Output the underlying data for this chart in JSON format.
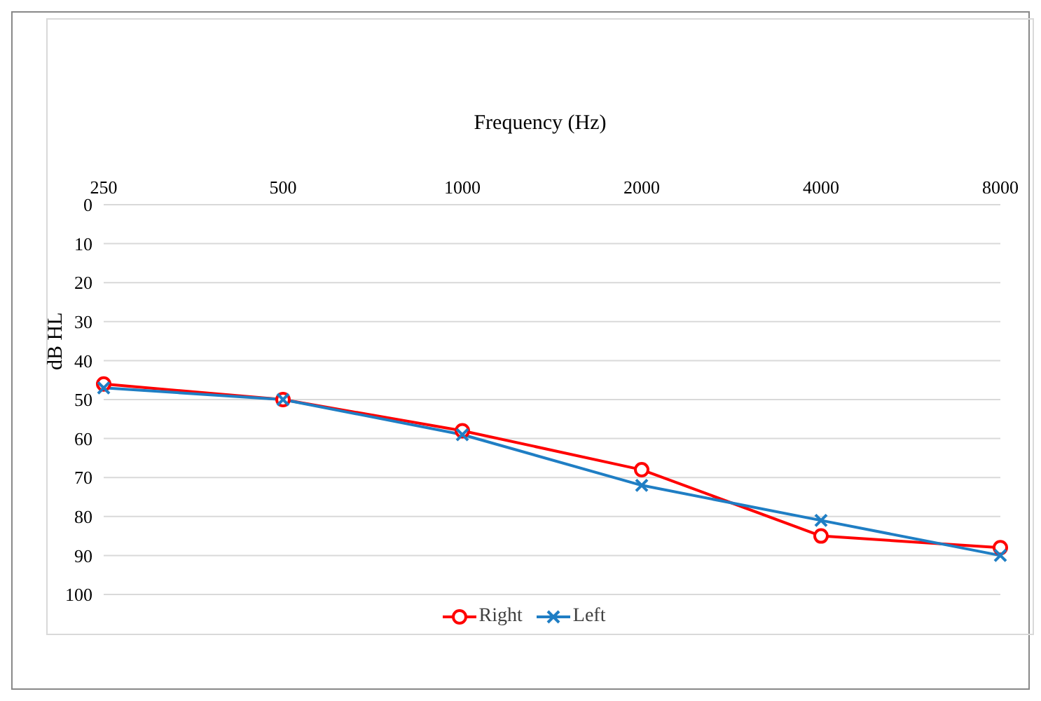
{
  "chart_data": {
    "type": "line",
    "xlabel": "Frequency (Hz)",
    "ylabel": "dB HL",
    "categories": [
      "250",
      "500",
      "1000",
      "2000",
      "4000",
      "8000"
    ],
    "series": [
      {
        "name": "Right",
        "color": "#ff0000",
        "marker": "circle",
        "values": [
          46,
          50,
          58,
          68,
          85,
          88
        ]
      },
      {
        "name": "Left",
        "color": "#1f7ec4",
        "marker": "cross",
        "values": [
          47,
          50,
          59,
          72,
          81,
          90
        ]
      }
    ],
    "ylim": [
      100,
      0
    ],
    "yticks": [
      0,
      10,
      20,
      30,
      40,
      50,
      60,
      70,
      80,
      90,
      100
    ],
    "grid": "y",
    "legend": "bottom"
  }
}
